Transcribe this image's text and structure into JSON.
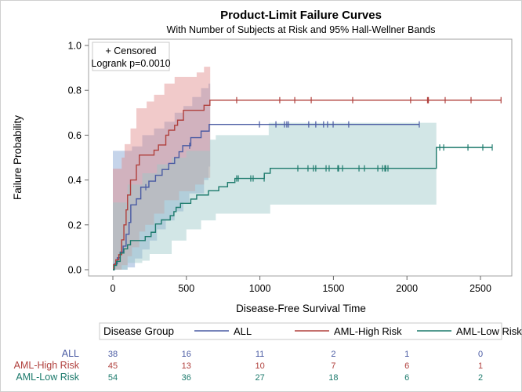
{
  "chart_data": {
    "type": "line",
    "title": "Product-Limit Failure Curves",
    "subtitle": "With Number of Subjects at Risk and 95% Hall-Wellner Bands",
    "xlabel": "Disease-Free Survival Time",
    "ylabel": "Failure Probability",
    "xlim": [
      -150,
      2700
    ],
    "ylim": [
      -0.03,
      1.03
    ],
    "xticks": [
      0,
      500,
      1000,
      1500,
      2000,
      2500
    ],
    "yticks": [
      0.0,
      0.2,
      0.4,
      0.6,
      0.8,
      1.0
    ],
    "ytick_labels": [
      "0.0",
      "0.2",
      "0.4",
      "0.6",
      "0.8",
      "1.0"
    ],
    "inset": {
      "censored_label": "+ Censored",
      "logrank": "Logrank p=0.0010"
    },
    "legend": {
      "title": "Disease Group",
      "placement": "bottom"
    },
    "series": [
      {
        "name": "ALL",
        "color": "#4a5ba3",
        "band_color": "#7f9fd0",
        "steps": [
          [
            0,
            0
          ],
          [
            10,
            0.026
          ],
          [
            30,
            0.053
          ],
          [
            50,
            0.079
          ],
          [
            70,
            0.105
          ],
          [
            90,
            0.158
          ],
          [
            110,
            0.211
          ],
          [
            122,
            0.289
          ],
          [
            160,
            0.316
          ],
          [
            190,
            0.368
          ],
          [
            245,
            0.395
          ],
          [
            290,
            0.421
          ],
          [
            335,
            0.447
          ],
          [
            380,
            0.474
          ],
          [
            420,
            0.5
          ],
          [
            450,
            0.526
          ],
          [
            475,
            0.553
          ],
          [
            530,
            0.589
          ],
          [
            600,
            0.618
          ],
          [
            655,
            0.648
          ]
        ],
        "end": 2084,
        "censored": [
          224,
          522,
          997,
          1109,
          1167,
          1183,
          1194,
          1332,
          1380,
          1433,
          1460,
          1498,
          1604,
          2084
        ],
        "band_upper": [
          [
            0,
            0.53
          ],
          [
            90,
            0.53
          ],
          [
            130,
            0.55
          ],
          [
            200,
            0.6
          ],
          [
            280,
            0.63
          ],
          [
            350,
            0.66
          ],
          [
            420,
            0.7
          ],
          [
            480,
            0.73
          ],
          [
            540,
            0.77
          ],
          [
            600,
            0.81
          ],
          [
            650,
            0.83
          ]
        ],
        "band_lower": [
          [
            0,
            0
          ],
          [
            100,
            0.01
          ],
          [
            150,
            0.05
          ],
          [
            200,
            0.09
          ],
          [
            250,
            0.13
          ],
          [
            300,
            0.18
          ],
          [
            360,
            0.22
          ],
          [
            420,
            0.26
          ],
          [
            480,
            0.3
          ],
          [
            520,
            0.34
          ],
          [
            620,
            0.4
          ],
          [
            650,
            0.46
          ]
        ],
        "band_end": 662,
        "at_risk": [
          38,
          16,
          11,
          2,
          1,
          0
        ]
      },
      {
        "name": "AML-High Risk",
        "color": "#b0403d",
        "band_color": "#e08a8a",
        "steps": [
          [
            0,
            0
          ],
          [
            5,
            0.022
          ],
          [
            20,
            0.044
          ],
          [
            40,
            0.067
          ],
          [
            60,
            0.133
          ],
          [
            75,
            0.2
          ],
          [
            90,
            0.267
          ],
          [
            100,
            0.333
          ],
          [
            120,
            0.4
          ],
          [
            160,
            0.467
          ],
          [
            180,
            0.511
          ],
          [
            280,
            0.533
          ],
          [
            310,
            0.556
          ],
          [
            360,
            0.6
          ],
          [
            380,
            0.622
          ],
          [
            420,
            0.644
          ],
          [
            440,
            0.667
          ],
          [
            480,
            0.711
          ],
          [
            620,
            0.733
          ],
          [
            660,
            0.756
          ]
        ],
        "end": 2640,
        "censored": [
          842,
          1135,
          1237,
          1349,
          1631,
          2025,
          2140,
          2146,
          2260,
          2436,
          2640
        ],
        "band_upper": [
          [
            0,
            0.45
          ],
          [
            60,
            0.5
          ],
          [
            80,
            0.56
          ],
          [
            120,
            0.63
          ],
          [
            160,
            0.72
          ],
          [
            230,
            0.75
          ],
          [
            280,
            0.78
          ],
          [
            350,
            0.83
          ],
          [
            420,
            0.86
          ],
          [
            570,
            0.88
          ],
          [
            620,
            0.905
          ]
        ],
        "band_lower": [
          [
            0,
            0
          ],
          [
            60,
            0.02
          ],
          [
            100,
            0.06
          ],
          [
            130,
            0.1
          ],
          [
            180,
            0.17
          ],
          [
            220,
            0.2
          ],
          [
            280,
            0.25
          ],
          [
            350,
            0.31
          ],
          [
            450,
            0.35
          ],
          [
            560,
            0.38
          ],
          [
            620,
            0.41
          ]
        ],
        "band_end": 662,
        "at_risk": [
          45,
          13,
          10,
          7,
          6,
          1
        ]
      },
      {
        "name": "AML-Low Risk",
        "color": "#1c7a6c",
        "band_color": "#9cc8c8",
        "steps": [
          [
            0,
            0
          ],
          [
            10,
            0.019
          ],
          [
            25,
            0.037
          ],
          [
            50,
            0.074
          ],
          [
            75,
            0.093
          ],
          [
            100,
            0.111
          ],
          [
            120,
            0.13
          ],
          [
            220,
            0.148
          ],
          [
            260,
            0.167
          ],
          [
            290,
            0.204
          ],
          [
            330,
            0.222
          ],
          [
            390,
            0.241
          ],
          [
            415,
            0.259
          ],
          [
            430,
            0.278
          ],
          [
            460,
            0.296
          ],
          [
            530,
            0.315
          ],
          [
            570,
            0.333
          ],
          [
            650,
            0.352
          ],
          [
            720,
            0.37
          ],
          [
            780,
            0.389
          ],
          [
            830,
            0.407
          ],
          [
            1030,
            0.43
          ],
          [
            1070,
            0.452
          ],
          [
            2200,
            0.545
          ]
        ],
        "end": 2580,
        "censored": [
          842,
          853,
          938,
          954,
          1029,
          1258,
          1327,
          1364,
          1380,
          1450,
          1471,
          1530,
          1535,
          1562,
          1674,
          1711,
          1802,
          1834,
          1850,
          1855,
          1871,
          2223,
          2250,
          2415,
          2516,
          2580
        ],
        "band_upper": [
          [
            0,
            0.3
          ],
          [
            100,
            0.38
          ],
          [
            200,
            0.43
          ],
          [
            300,
            0.47
          ],
          [
            400,
            0.5
          ],
          [
            500,
            0.53
          ],
          [
            660,
            0.58
          ],
          [
            700,
            0.6
          ],
          [
            1060,
            0.655
          ]
        ],
        "band_lower": [
          [
            0,
            0
          ],
          [
            100,
            0.03
          ],
          [
            200,
            0.04
          ],
          [
            250,
            0.07
          ],
          [
            400,
            0.13
          ],
          [
            500,
            0.18
          ],
          [
            600,
            0.22
          ],
          [
            700,
            0.25
          ],
          [
            1070,
            0.29
          ]
        ],
        "band_end": 2200,
        "at_risk": [
          54,
          36,
          27,
          18,
          6,
          2
        ]
      }
    ]
  }
}
